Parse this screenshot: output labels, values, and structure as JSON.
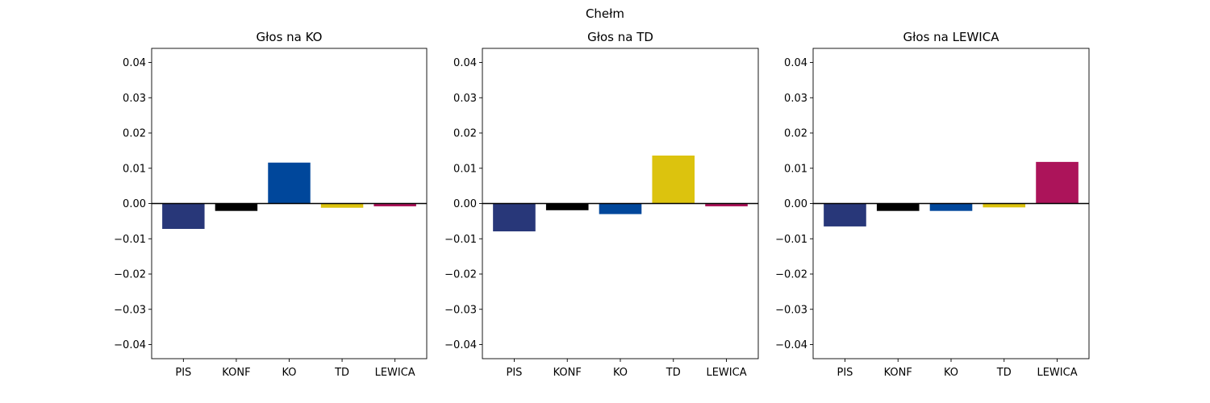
{
  "figure": {
    "title": "Chełm"
  },
  "chart_data": [
    {
      "type": "bar",
      "title": "Głos na KO",
      "categories": [
        "PIS",
        "KONF",
        "KO",
        "TD",
        "LEWICA"
      ],
      "values": [
        -0.0072,
        -0.0021,
        0.0116,
        -0.0012,
        -0.0008
      ],
      "colors": [
        "#283779",
        "#000000",
        "#00479B",
        "#DCC30E",
        "#AC145A"
      ],
      "ylim": [
        -0.044,
        0.044
      ],
      "yticks": [
        -0.04,
        -0.03,
        -0.02,
        -0.01,
        0.0,
        0.01,
        0.02,
        0.03,
        0.04
      ],
      "ytick_labels": [
        "−0.04",
        "−0.03",
        "−0.02",
        "−0.01",
        "0.00",
        "0.01",
        "0.02",
        "0.03",
        "0.04"
      ],
      "zero_line": true,
      "grid": false
    },
    {
      "type": "bar",
      "title": "Głos na TD",
      "categories": [
        "PIS",
        "KONF",
        "KO",
        "TD",
        "LEWICA"
      ],
      "values": [
        -0.0079,
        -0.0019,
        -0.003,
        0.0136,
        -0.0008
      ],
      "colors": [
        "#283779",
        "#000000",
        "#00479B",
        "#DCC30E",
        "#AC145A"
      ],
      "ylim": [
        -0.044,
        0.044
      ],
      "yticks": [
        -0.04,
        -0.03,
        -0.02,
        -0.01,
        0.0,
        0.01,
        0.02,
        0.03,
        0.04
      ],
      "ytick_labels": [
        "−0.04",
        "−0.03",
        "−0.02",
        "−0.01",
        "0.00",
        "0.01",
        "0.02",
        "0.03",
        "0.04"
      ],
      "zero_line": true,
      "grid": false
    },
    {
      "type": "bar",
      "title": "Głos na LEWICA",
      "categories": [
        "PIS",
        "KONF",
        "KO",
        "TD",
        "LEWICA"
      ],
      "values": [
        -0.0065,
        -0.0021,
        -0.0021,
        -0.0011,
        0.0118
      ],
      "colors": [
        "#283779",
        "#000000",
        "#00479B",
        "#DCC30E",
        "#AC145A"
      ],
      "ylim": [
        -0.044,
        0.044
      ],
      "yticks": [
        -0.04,
        -0.03,
        -0.02,
        -0.01,
        0.0,
        0.01,
        0.02,
        0.03,
        0.04
      ],
      "ytick_labels": [
        "−0.04",
        "−0.03",
        "−0.02",
        "−0.01",
        "0.00",
        "0.01",
        "0.02",
        "0.03",
        "0.04"
      ],
      "zero_line": true,
      "grid": false
    }
  ]
}
